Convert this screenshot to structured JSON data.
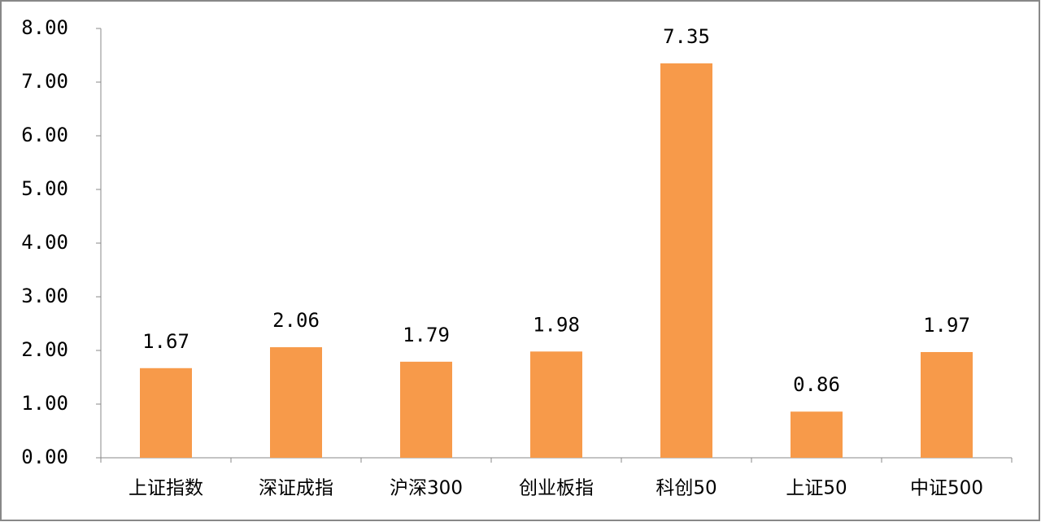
{
  "chart_data": {
    "type": "bar",
    "categories": [
      "上证指数",
      "深证成指",
      "沪深300",
      "创业板指",
      "科创50",
      "上证50",
      "中证500"
    ],
    "values": [
      1.67,
      2.06,
      1.79,
      1.98,
      7.35,
      0.86,
      1.97
    ],
    "color": "#f79a4a",
    "ylim": [
      0,
      8
    ],
    "yticks": [
      {
        "value": 0,
        "label": "0.00"
      },
      {
        "value": 1,
        "label": "1.00"
      },
      {
        "value": 2,
        "label": "2.00"
      },
      {
        "value": 3,
        "label": "3.00"
      },
      {
        "value": 4,
        "label": "4.00"
      },
      {
        "value": 5,
        "label": "5.00"
      },
      {
        "value": 6,
        "label": "6.00"
      },
      {
        "value": 7,
        "label": "7.00"
      },
      {
        "value": 8,
        "label": "8.00"
      }
    ]
  }
}
